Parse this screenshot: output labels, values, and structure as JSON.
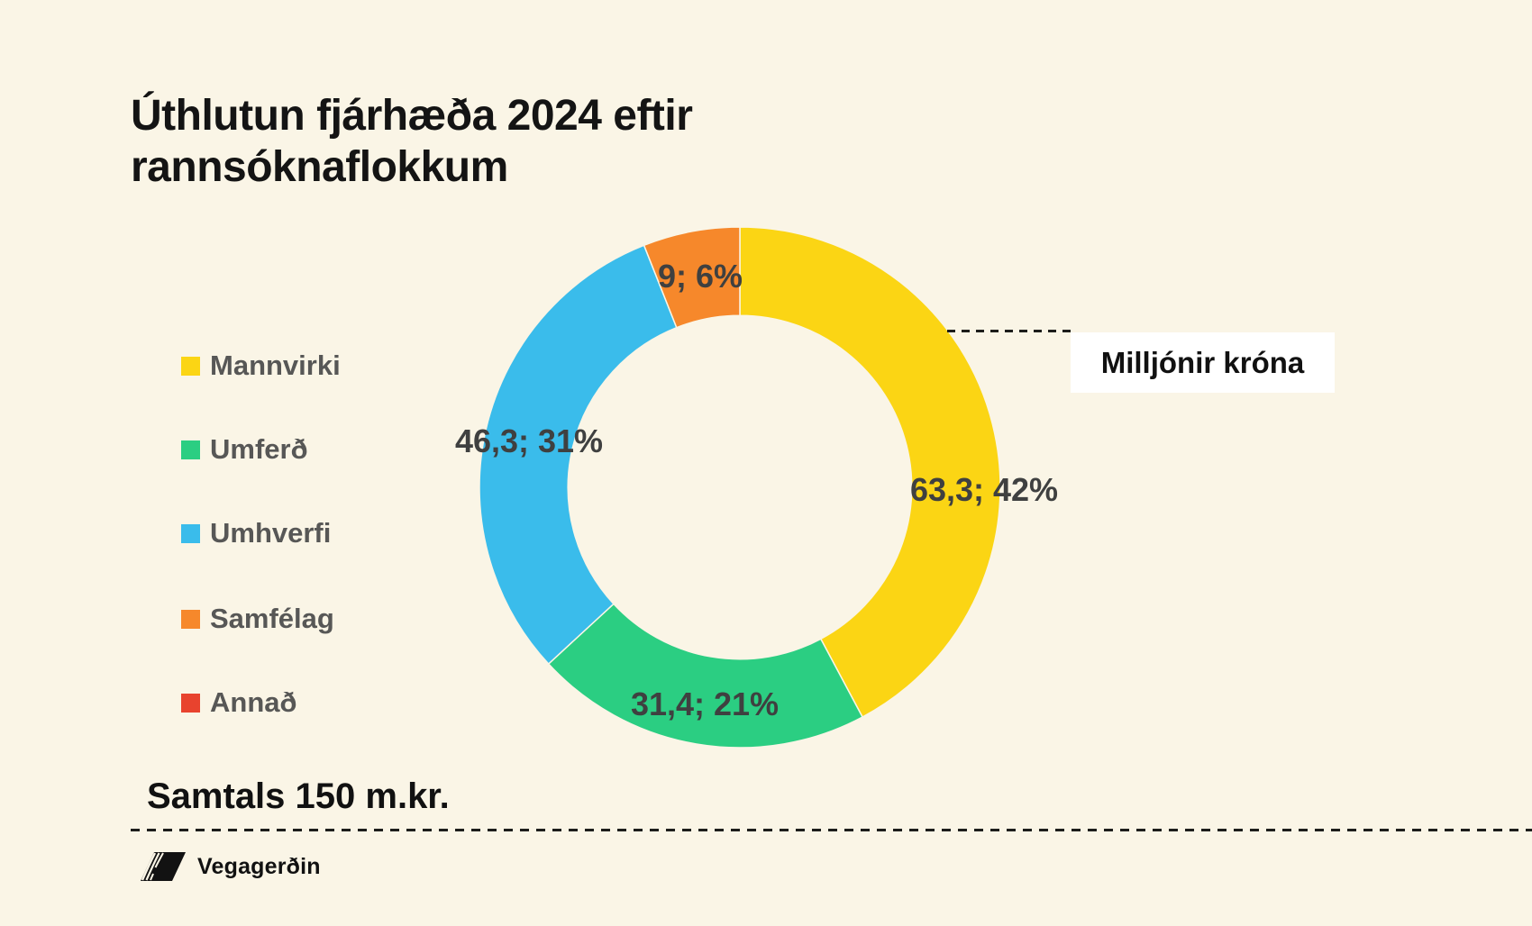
{
  "page": {
    "background": "#FAF5E6"
  },
  "chart_data": {
    "type": "pie",
    "subtype": "donut",
    "title": "Úthlutun fjárhæða 2024 eftir rannsóknaflokkum",
    "unit_annotation": "Milljónir króna",
    "categories": [
      "Mannvirki",
      "Umferð",
      "Umhverfi",
      "Samfélag",
      "Annað"
    ],
    "values": [
      63.3,
      31.4,
      46.3,
      9,
      0
    ],
    "percentages": [
      42,
      21,
      31,
      6,
      0
    ],
    "data_labels": [
      "63,3; 42%",
      "31,4; 21%",
      "46,3; 31%",
      "9; 6%",
      ""
    ],
    "colors": [
      "#FBD514",
      "#2BCE82",
      "#3ABCEB",
      "#F6882B",
      "#E8432E"
    ],
    "start_angle_deg": 0,
    "direction": "clockwise",
    "hole_ratio": 0.66,
    "legend_position": "left",
    "total": 150,
    "total_label": "Samtals 150 m.kr.",
    "label_text_color": "#3F4040",
    "legend_text_color": "#575756"
  },
  "footer": {
    "brand": "Vegagerðin"
  }
}
